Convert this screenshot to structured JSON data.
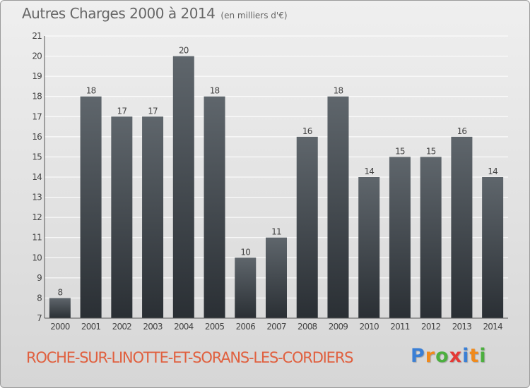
{
  "title": "Autres Charges 2000 à 2014",
  "unit_note": "(en milliers d'€)",
  "place_name": "ROCHE-SUR-LINOTTE-ET-SORANS-LES-CORDIERS",
  "logo": {
    "text": "Proxiti",
    "letters": [
      "P",
      "r",
      "o",
      "x",
      "i",
      "t",
      "i"
    ],
    "colors": [
      "#3a7fd5",
      "#f08a1c",
      "#4caf3f",
      "#e53935",
      "#3a7fd5",
      "#f08a1c",
      "#4caf3f"
    ]
  },
  "colors": {
    "bar_top": "#5f666c",
    "bar_bottom": "#2a2f34",
    "grid": "#ffffff",
    "axis_text": "#444444",
    "place_text": "#e0603f"
  },
  "chart_data": {
    "type": "bar",
    "title": "Autres Charges 2000 à 2014",
    "subtitle": "(en milliers d'€)",
    "categories": [
      "2000",
      "2001",
      "2002",
      "2003",
      "2004",
      "2005",
      "2006",
      "2007",
      "2008",
      "2009",
      "2010",
      "2011",
      "2012",
      "2013",
      "2014"
    ],
    "values": [
      8,
      18,
      17,
      17,
      20,
      18,
      10,
      11,
      16,
      18,
      14,
      15,
      15,
      16,
      14
    ],
    "ylim": [
      7,
      21
    ],
    "yticks": [
      7,
      8,
      9,
      10,
      11,
      12,
      13,
      14,
      15,
      16,
      17,
      18,
      19,
      20,
      21
    ],
    "grid": true,
    "data_labels": true
  }
}
